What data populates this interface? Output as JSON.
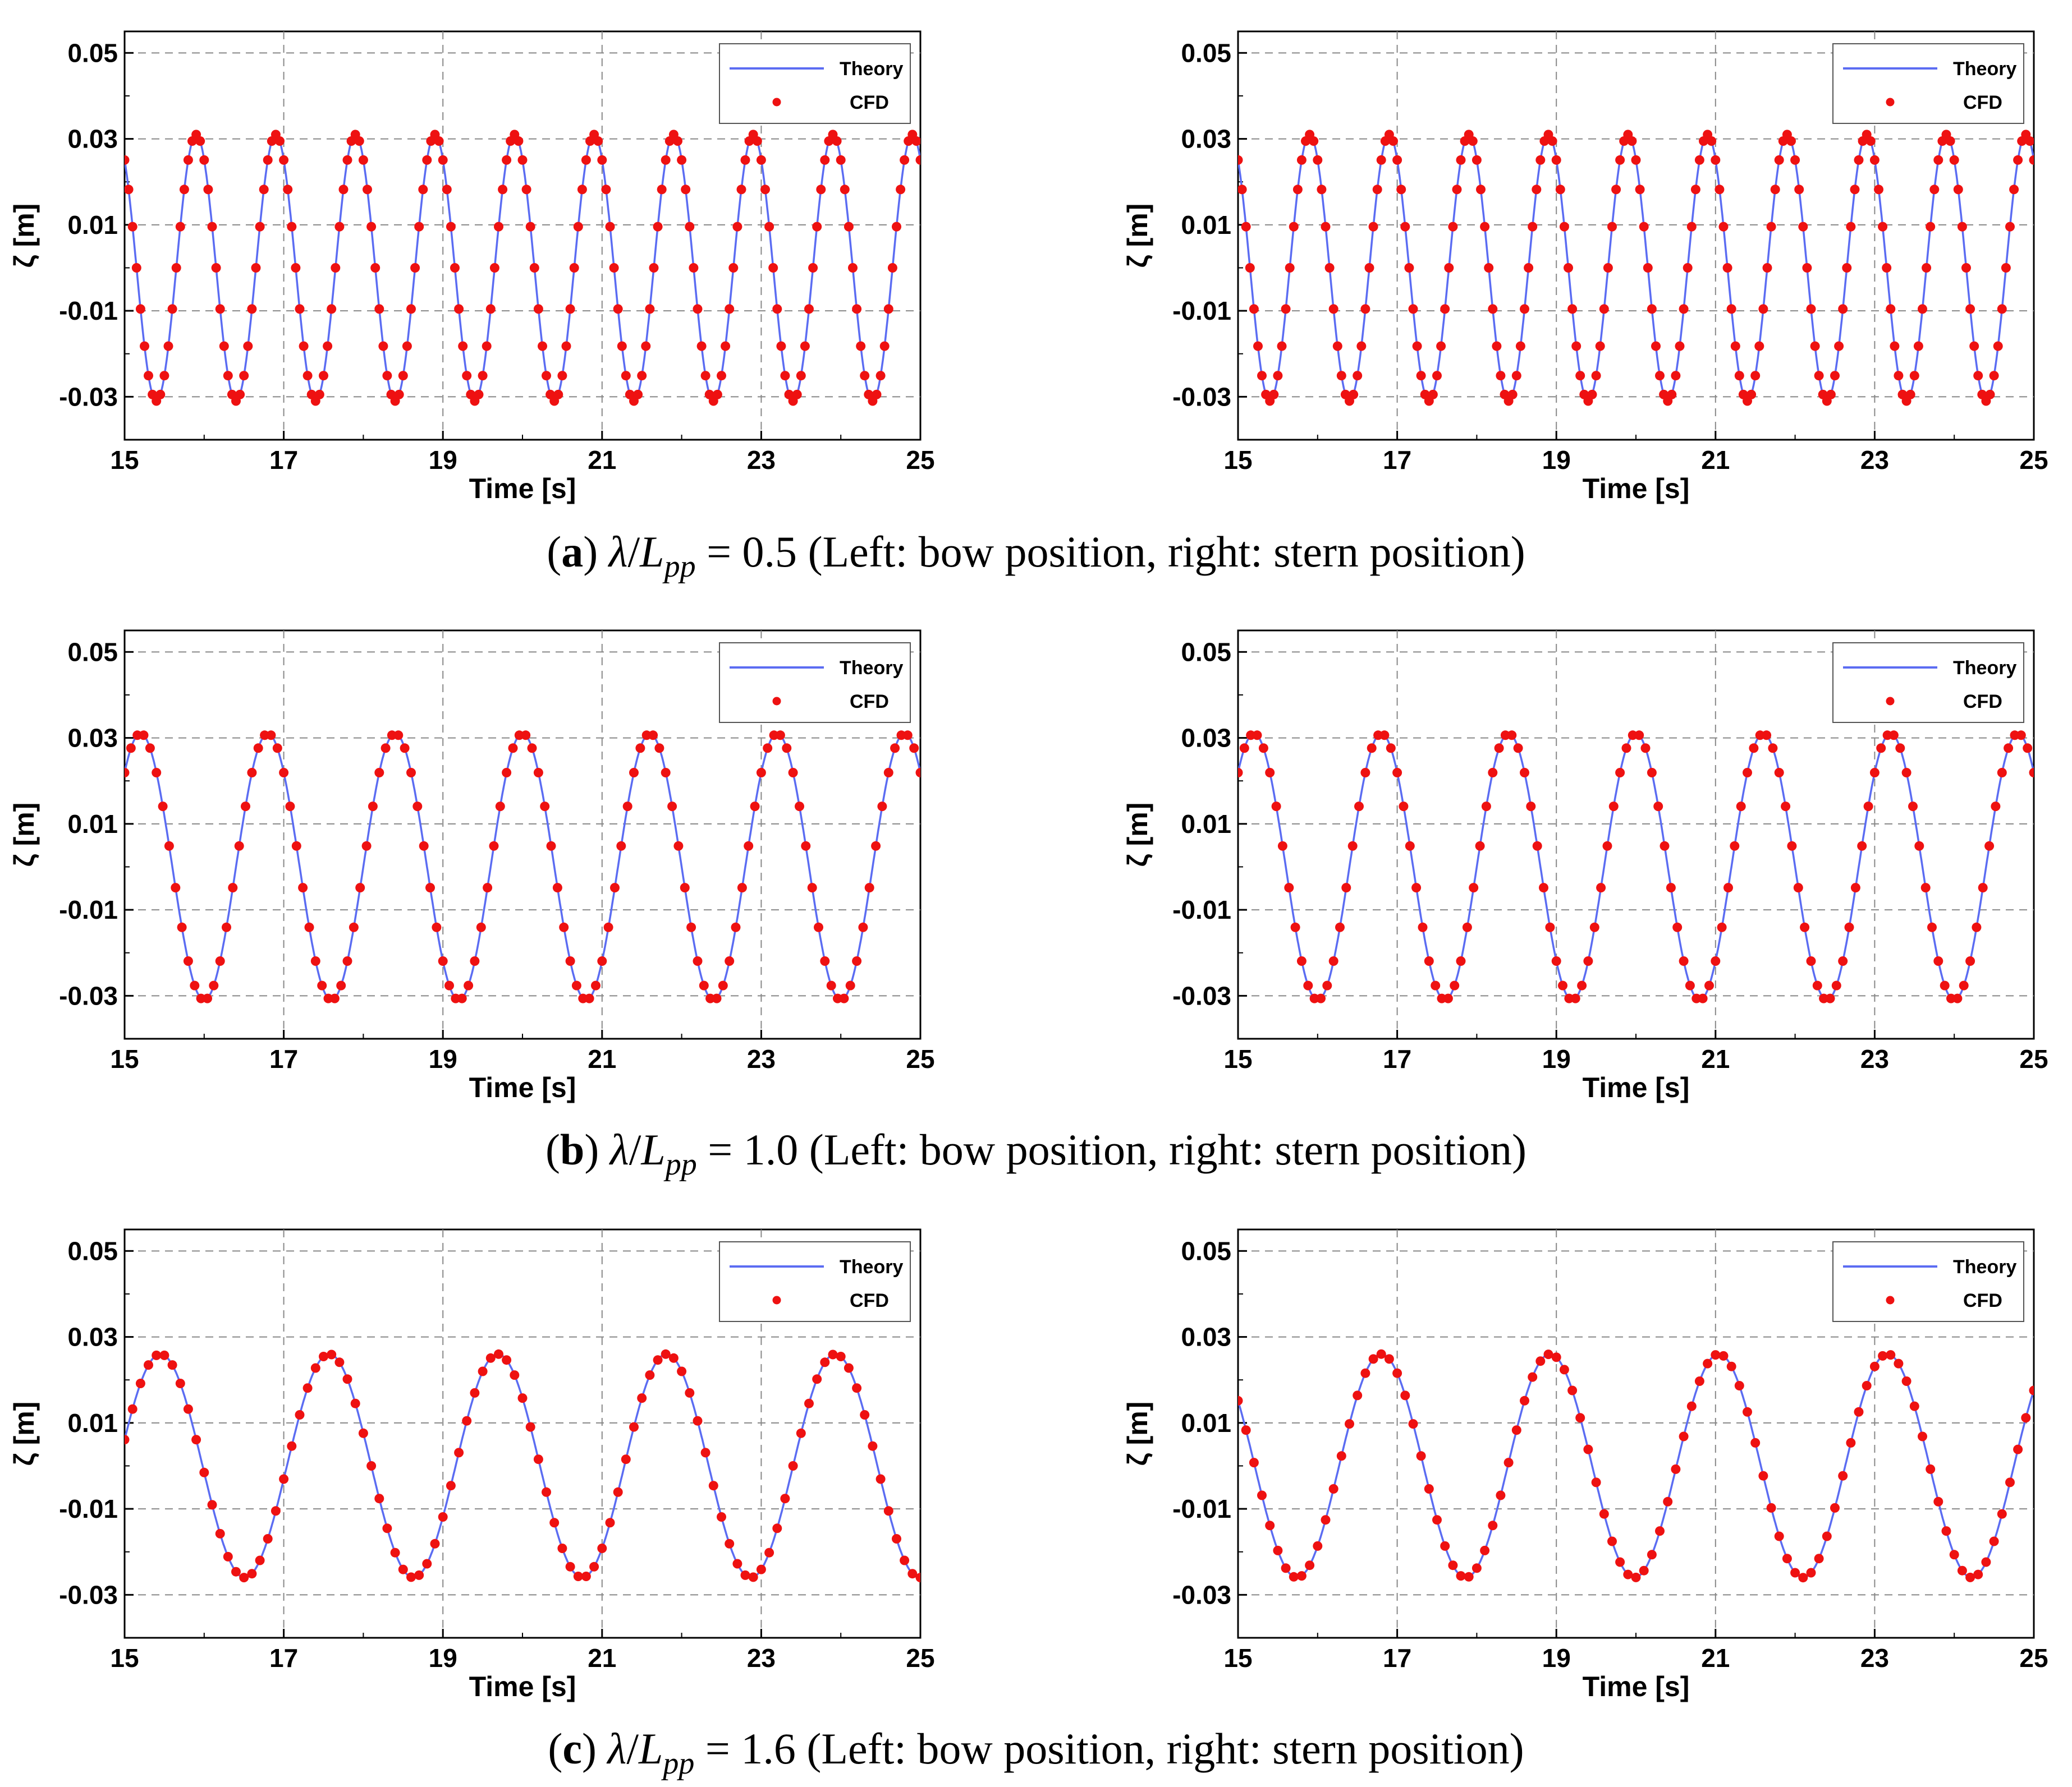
{
  "figure": {
    "colors": {
      "theory": "#5b6cf2",
      "cfd": "#ee1111",
      "grid": "#888888",
      "axis": "#000000"
    }
  },
  "captions": [
    {
      "letter": "a",
      "lambda": "λ",
      "over": "/",
      "L": "L",
      "sub": "pp",
      "eq": " = 0.5",
      "rest": "(Left: bow position, right: stern position)"
    },
    {
      "letter": "b",
      "lambda": "λ",
      "over": "/",
      "L": "L",
      "sub": "pp",
      "eq": " = 1.0",
      "rest": "(Left: bow position, right: stern position)"
    },
    {
      "letter": "c",
      "lambda": "λ",
      "over": "/",
      "L": "L",
      "sub": "pp",
      "eq": " = 1.6",
      "rest": "(Left: bow position, right: stern position)"
    }
  ],
  "chart_data": [
    {
      "id": "a-bow",
      "type": "line",
      "row": "a",
      "position": "bow",
      "amplitude": 0.031,
      "period": 1.0,
      "peak_time": 15.9,
      "cfd_dt": 0.05,
      "xlabel": "Time [s]",
      "ylabel": "ζ [m]",
      "xlim": [
        15,
        25
      ],
      "ylim": [
        -0.04,
        0.055
      ],
      "xticks": [
        15,
        17,
        19,
        21,
        23,
        25
      ],
      "xtick_labels": [
        "15",
        "17",
        "19",
        "21",
        "23",
        "25"
      ],
      "yticks": [
        0.05,
        0.03,
        0.01,
        -0.01,
        -0.03
      ],
      "ytick_labels": [
        "0.05",
        "0.03",
        "0.01",
        "-0.01",
        "-0.03"
      ],
      "legend": [
        "Theory",
        "CFD"
      ],
      "legend_position": "top-right",
      "grid": true
    },
    {
      "id": "a-stern",
      "type": "line",
      "row": "a",
      "position": "stern",
      "amplitude": 0.031,
      "period": 1.0,
      "peak_time": 15.9,
      "cfd_dt": 0.05,
      "xlabel": "Time [s]",
      "ylabel": "ζ [m]",
      "xlim": [
        15,
        25
      ],
      "ylim": [
        -0.04,
        0.055
      ],
      "xticks": [
        15,
        17,
        19,
        21,
        23,
        25
      ],
      "xtick_labels": [
        "15",
        "17",
        "19",
        "21",
        "23",
        "25"
      ],
      "yticks": [
        0.05,
        0.03,
        0.01,
        -0.01,
        -0.03
      ],
      "ytick_labels": [
        "0.05",
        "0.03",
        "0.01",
        "-0.01",
        "-0.03"
      ],
      "legend": [
        "Theory",
        "CFD"
      ],
      "legend_position": "top-right",
      "grid": true
    },
    {
      "id": "b-bow",
      "type": "line",
      "row": "b",
      "position": "bow",
      "amplitude": 0.031,
      "period": 1.6,
      "peak_time": 15.2,
      "cfd_dt": 0.08,
      "xlabel": "Time [s]",
      "ylabel": "ζ [m]",
      "xlim": [
        15,
        25
      ],
      "ylim": [
        -0.04,
        0.055
      ],
      "xticks": [
        15,
        17,
        19,
        21,
        23,
        25
      ],
      "xtick_labels": [
        "15",
        "17",
        "19",
        "21",
        "23",
        "25"
      ],
      "yticks": [
        0.05,
        0.03,
        0.01,
        -0.01,
        -0.03
      ],
      "ytick_labels": [
        "0.05",
        "0.03",
        "0.01",
        "-0.01",
        "-0.03"
      ],
      "legend": [
        "Theory",
        "CFD"
      ],
      "legend_position": "top-right",
      "grid": true
    },
    {
      "id": "b-stern",
      "type": "line",
      "row": "b",
      "position": "stern",
      "amplitude": 0.031,
      "period": 1.6,
      "peak_time": 15.2,
      "cfd_dt": 0.08,
      "xlabel": "Time [s]",
      "ylabel": "ζ [m]",
      "xlim": [
        15,
        25
      ],
      "ylim": [
        -0.04,
        0.055
      ],
      "xticks": [
        15,
        17,
        19,
        21,
        23,
        25
      ],
      "xtick_labels": [
        "15",
        "17",
        "19",
        "21",
        "23",
        "25"
      ],
      "yticks": [
        0.05,
        0.03,
        0.01,
        -0.01,
        -0.03
      ],
      "ytick_labels": [
        "0.05",
        "0.03",
        "0.01",
        "-0.01",
        "-0.03"
      ],
      "legend": [
        "Theory",
        "CFD"
      ],
      "legend_position": "top-right",
      "grid": true
    },
    {
      "id": "c-bow",
      "type": "line",
      "row": "c",
      "position": "bow",
      "amplitude": 0.026,
      "period": 2.12,
      "peak_time": 15.45,
      "cfd_dt": 0.1,
      "xlabel": "Time [s]",
      "ylabel": "ζ [m]",
      "xlim": [
        15,
        25
      ],
      "ylim": [
        -0.04,
        0.055
      ],
      "xticks": [
        15,
        17,
        19,
        21,
        23,
        25
      ],
      "xtick_labels": [
        "15",
        "17",
        "19",
        "21",
        "23",
        "25"
      ],
      "yticks": [
        0.05,
        0.03,
        0.01,
        -0.01,
        -0.03
      ],
      "ytick_labels": [
        "0.05",
        "0.03",
        "0.01",
        "-0.01",
        "-0.03"
      ],
      "legend": [
        "Theory",
        "CFD"
      ],
      "legend_position": "top-right",
      "grid": true
    },
    {
      "id": "c-stern",
      "type": "line",
      "row": "c",
      "position": "stern",
      "amplitude": 0.026,
      "period": 2.12,
      "peak_time": 16.8,
      "cfd_dt": 0.1,
      "xlabel": "Time [s]",
      "ylabel": "ζ [m]",
      "xlim": [
        15,
        25
      ],
      "ylim": [
        -0.04,
        0.055
      ],
      "xticks": [
        15,
        17,
        19,
        21,
        23,
        25
      ],
      "xtick_labels": [
        "15",
        "17",
        "19",
        "21",
        "23",
        "25"
      ],
      "yticks": [
        0.05,
        0.03,
        0.01,
        -0.01,
        -0.03
      ],
      "ytick_labels": [
        "0.05",
        "0.03",
        "0.01",
        "-0.01",
        "-0.03"
      ],
      "legend": [
        "Theory",
        "CFD"
      ],
      "legend_position": "top-right",
      "grid": true
    }
  ]
}
